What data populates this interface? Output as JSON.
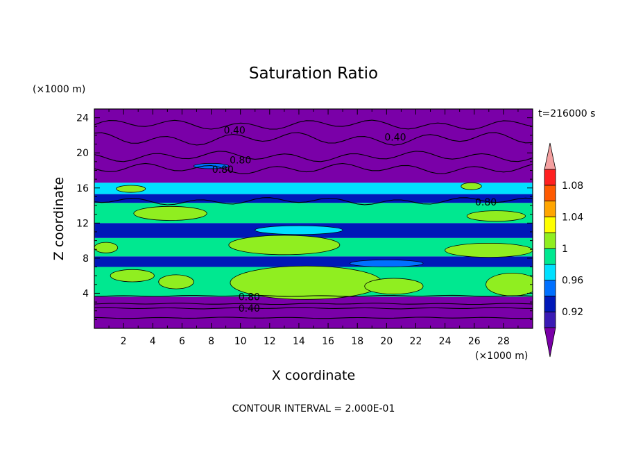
{
  "chart_data": {
    "type": "heatmap",
    "title": "Saturation Ratio",
    "xlabel": "X coordinate",
    "ylabel": "Z coordinate",
    "x_unit": "(×1000 m)",
    "y_unit": "(×1000 m)",
    "xlim": [
      0,
      30
    ],
    "ylim": [
      0,
      25
    ],
    "x_ticks": [
      2,
      4,
      6,
      8,
      10,
      12,
      14,
      16,
      18,
      20,
      22,
      24,
      26,
      28
    ],
    "y_ticks": [
      4,
      8,
      12,
      16,
      20,
      24
    ],
    "time_label": "t=216000 s",
    "footer": "CONTOUR INTERVAL = 2.000E-01",
    "colorbar": {
      "levels": [
        0.9,
        0.92,
        0.94,
        0.96,
        0.98,
        1.0,
        1.02,
        1.04,
        1.06,
        1.08,
        1.1
      ],
      "tick_labels": [
        "0.92",
        "0.96",
        "1",
        "1.04",
        "1.08"
      ],
      "tick_values": [
        0.92,
        0.96,
        1.0,
        1.04,
        1.08
      ],
      "colors": [
        "#7a00a8",
        "#3a1ab4",
        "#0018b8",
        "#0070ff",
        "#00e0ff",
        "#00e890",
        "#90ee20",
        "#ffff00",
        "#ffa500",
        "#ff5a00",
        "#ff2020",
        "#f4a0a0"
      ]
    },
    "contour_labels": [
      {
        "x": 9.6,
        "z": 22.6,
        "text": "0.40"
      },
      {
        "x": 20.6,
        "z": 21.8,
        "text": "0.40"
      },
      {
        "x": 10.0,
        "z": 19.2,
        "text": "0.80"
      },
      {
        "x": 8.8,
        "z": 18.1,
        "text": "0.80"
      },
      {
        "x": 26.8,
        "z": 14.4,
        "text": "0.80"
      },
      {
        "x": 10.6,
        "z": 3.6,
        "text": "0.80"
      },
      {
        "x": 10.6,
        "z": 2.3,
        "text": "0.40"
      }
    ],
    "bands": [
      {
        "z0": 0,
        "z1": 3.6,
        "value": 0.5
      },
      {
        "z0": 3.6,
        "z1": 7.0,
        "value": 0.99
      },
      {
        "z0": 7.0,
        "z1": 8.2,
        "value": 0.93
      },
      {
        "z0": 8.2,
        "z1": 10.3,
        "value": 0.98
      },
      {
        "z0": 10.3,
        "z1": 12.0,
        "value": 0.92
      },
      {
        "z0": 12.0,
        "z1": 14.3,
        "value": 0.98
      },
      {
        "z0": 14.3,
        "z1": 15.3,
        "value": 0.93
      },
      {
        "z0": 15.3,
        "z1": 16.6,
        "value": 0.97
      },
      {
        "z0": 16.6,
        "z1": 25,
        "value": 0.6
      }
    ],
    "blobs": [
      {
        "x": 14.5,
        "z": 5.2,
        "rx": 5.2,
        "rz": 1.9,
        "value": 1.01
      },
      {
        "x": 28.6,
        "z": 5.0,
        "rx": 1.8,
        "rz": 1.3,
        "value": 1.01
      },
      {
        "x": 20.5,
        "z": 4.8,
        "rx": 2.0,
        "rz": 0.9,
        "value": 1.01
      },
      {
        "x": 5.6,
        "z": 5.3,
        "rx": 1.2,
        "rz": 0.8,
        "value": 1.01
      },
      {
        "x": 2.6,
        "z": 6.0,
        "rx": 1.5,
        "rz": 0.7,
        "value": 1.01
      },
      {
        "x": 13.0,
        "z": 9.5,
        "rx": 3.8,
        "rz": 1.1,
        "value": 1.01
      },
      {
        "x": 27.0,
        "z": 8.9,
        "rx": 3.0,
        "rz": 0.8,
        "value": 1.01
      },
      {
        "x": 0.8,
        "z": 9.2,
        "rx": 0.8,
        "rz": 0.6,
        "value": 1.01
      },
      {
        "x": 5.2,
        "z": 13.1,
        "rx": 2.5,
        "rz": 0.8,
        "value": 1.01
      },
      {
        "x": 27.5,
        "z": 12.8,
        "rx": 2.0,
        "rz": 0.6,
        "value": 1.01
      },
      {
        "x": 2.5,
        "z": 15.9,
        "rx": 1.0,
        "rz": 0.4,
        "value": 1.01
      },
      {
        "x": 25.8,
        "z": 16.2,
        "rx": 0.7,
        "rz": 0.4,
        "value": 1.01
      },
      {
        "x": 8.0,
        "z": 18.5,
        "rx": 1.2,
        "rz": 0.3,
        "value": 0.95
      },
      {
        "x": 14.0,
        "z": 11.2,
        "rx": 3.0,
        "rz": 0.5,
        "value": 0.96
      },
      {
        "x": 20.0,
        "z": 7.4,
        "rx": 2.5,
        "rz": 0.4,
        "value": 0.95
      }
    ],
    "contour_lines": [
      {
        "z": 23.2,
        "amp": 0.4
      },
      {
        "z": 21.6,
        "amp": 0.5
      },
      {
        "z": 19.6,
        "amp": 0.4
      },
      {
        "z": 18.2,
        "amp": 0.4
      },
      {
        "z": 14.5,
        "amp": 0.3
      },
      {
        "z": 3.7,
        "amp": 0.05
      },
      {
        "z": 2.8,
        "amp": 0.05
      },
      {
        "z": 2.3,
        "amp": 0.05
      },
      {
        "z": 1.2,
        "amp": 0.05
      }
    ]
  }
}
